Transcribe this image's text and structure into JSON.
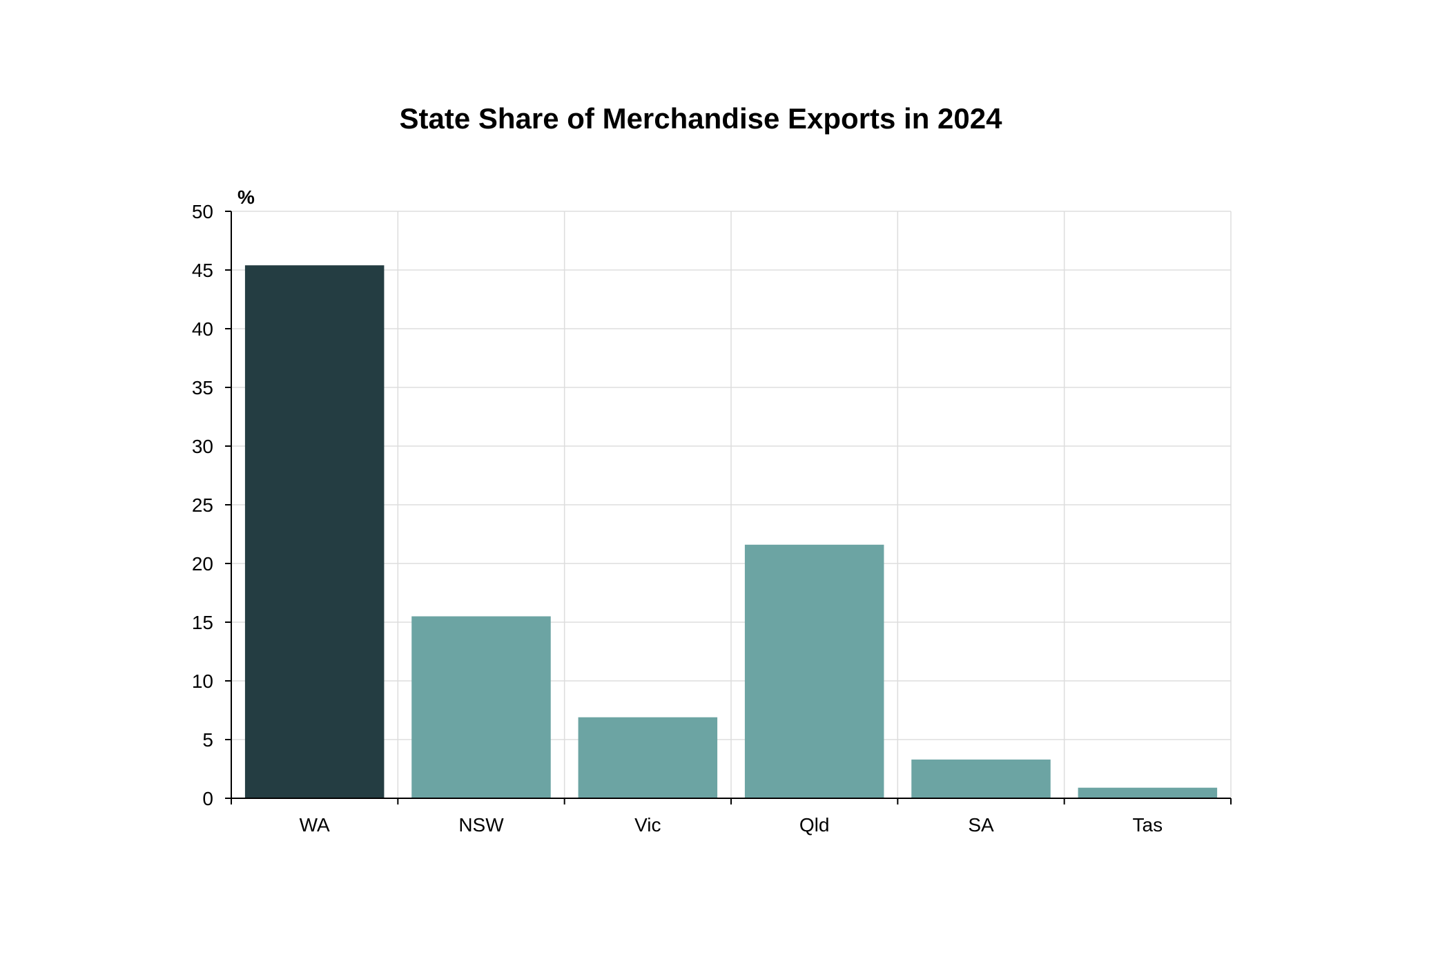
{
  "chart_data": {
    "type": "bar",
    "title": "State Share of Merchandise Exports in 2024",
    "ylabel": "%",
    "xlabel": "",
    "categories": [
      "WA",
      "NSW",
      "Vic",
      "Qld",
      "SA",
      "Tas"
    ],
    "values": [
      45.4,
      15.5,
      6.9,
      21.6,
      3.3,
      0.9
    ],
    "ylim": [
      0,
      50
    ],
    "yticks": [
      "0",
      "5",
      "10",
      "15",
      "20",
      "25",
      "30",
      "35",
      "40",
      "45",
      "50"
    ],
    "grid": true,
    "legend": "none",
    "colors": {
      "highlight": "#243d42",
      "default": "#6ca4a3"
    },
    "highlight_index": 0
  }
}
